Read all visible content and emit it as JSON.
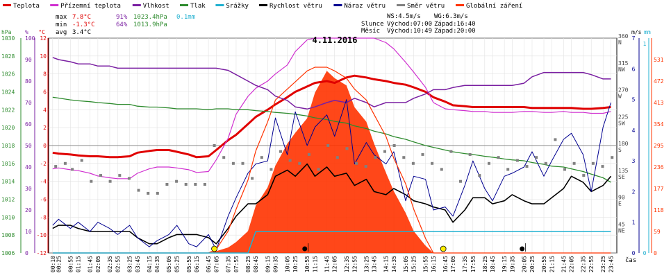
{
  "chart_data": {
    "type": "line",
    "title": "4.11.2016",
    "xlabel": "čas",
    "legend": [
      {
        "label": "Teplota",
        "color": "#e00000"
      },
      {
        "label": "Přízemní teplota",
        "color": "#d030d0"
      },
      {
        "label": "Vlhkost",
        "color": "#7a1fa2"
      },
      {
        "label": "Tlak",
        "color": "#2e8b2e"
      },
      {
        "label": "Srážky",
        "color": "#20b0d0"
      },
      {
        "label": "Rychlost větru",
        "color": "#000000"
      },
      {
        "label": "Náraz větru",
        "color": "#000090"
      },
      {
        "label": "Směr větru",
        "color": "#808080"
      },
      {
        "label": "Globální záření",
        "color": "#ff3300"
      }
    ],
    "stats": {
      "max": {
        "label": "max",
        "temp": "7.8°C",
        "hum": "91%",
        "press": "1023.4hPa",
        "rain": "0.1mm"
      },
      "min": {
        "label": "min",
        "temp": "-1.3°C",
        "hum": "64%",
        "press": "1013.9hPa"
      },
      "avg": {
        "label": "avg",
        "temp": "3.4°C"
      }
    },
    "info": {
      "ws": "WS:4.5m/s",
      "wg": "WG:6.3m/s",
      "sun_label": "Slunce",
      "sunrise": "Východ:07:00",
      "sunset": "Západ:16:40",
      "moon_label": "Měsíc",
      "moonrise": "Východ:10:49",
      "moonset": "Západ:20:00"
    },
    "axes": {
      "hpa": {
        "unit": "hPa",
        "ticks": [
          "1030",
          "1028",
          "1026",
          "1024",
          "1022",
          "1020",
          "1018",
          "1016",
          "1014",
          "1012",
          "1010",
          "1008",
          "1006"
        ],
        "range": [
          1006,
          1030
        ]
      },
      "humidity": {
        "unit": "%",
        "ticks": [
          "100",
          "90",
          "80",
          "70",
          "60",
          "50",
          "40",
          "30",
          "20",
          "10",
          "0"
        ],
        "range": [
          0,
          100
        ]
      },
      "temp": {
        "unit": "°C",
        "ticks": [
          "12",
          "10",
          "8",
          "6",
          "4",
          "2",
          "0",
          "-2",
          "-4",
          "-6",
          "-8",
          "-10",
          "-12"
        ],
        "range": [
          -12,
          12
        ]
      },
      "direction": {
        "ticks": [
          {
            "v": "360",
            "c": "N",
            "deg": 360
          },
          {
            "v": "315",
            "c": "NW",
            "deg": 315
          },
          {
            "v": "270",
            "c": "W",
            "deg": 270
          },
          {
            "v": "225",
            "c": "SW",
            "deg": 225
          },
          {
            "v": "180",
            "c": "S",
            "deg": 180
          },
          {
            "v": "135",
            "c": "SE",
            "deg": 135
          },
          {
            "v": "90",
            "c": "E",
            "deg": 90
          },
          {
            "v": "45",
            "c": "NE",
            "deg": 45
          }
        ],
        "range": [
          0,
          360
        ]
      },
      "wind": {
        "unit": "m/s",
        "ticks": [
          "7",
          "6",
          "5",
          "4",
          "3",
          "2",
          "1",
          "0"
        ],
        "range": [
          0,
          7
        ]
      },
      "rain": {
        "unit": "mm",
        "ticks": [
          "1",
          "0"
        ],
        "range": [
          0,
          1
        ]
      },
      "radiation": {
        "ticks": [
          "531",
          "472",
          "413",
          "354",
          "295",
          "236",
          "177",
          "118",
          "59",
          "0"
        ],
        "range": [
          0,
          590
        ]
      }
    },
    "x": [
      "00:10",
      "00:25",
      "00:55",
      "01:15",
      "01:45",
      "02:05",
      "02:35",
      "02:55",
      "03:25",
      "03:45",
      "04:15",
      "04:35",
      "05:05",
      "05:25",
      "05:55",
      "06:15",
      "06:45",
      "07:05",
      "07:35",
      "07:55",
      "08:25",
      "08:45",
      "09:15",
      "09:35",
      "10:05",
      "10:25",
      "10:55",
      "11:15",
      "11:45",
      "12:05",
      "12:35",
      "12:55",
      "13:25",
      "13:45",
      "14:15",
      "14:35",
      "15:05",
      "15:25",
      "15:55",
      "16:15",
      "16:45",
      "17:05",
      "17:35",
      "17:55",
      "18:25",
      "18:45",
      "19:15",
      "19:35",
      "20:05",
      "20:25",
      "20:55",
      "21:15",
      "21:45",
      "22:05",
      "22:35",
      "22:55",
      "23:25",
      "23:45"
    ],
    "hours": [
      0.17,
      0.42,
      0.92,
      1.25,
      1.75,
      2.08,
      2.58,
      2.92,
      3.42,
      3.75,
      4.25,
      4.58,
      5.08,
      5.42,
      5.92,
      6.25,
      6.75,
      7.08,
      7.58,
      7.92,
      8.42,
      8.75,
      9.25,
      9.58,
      10.08,
      10.42,
      10.92,
      11.25,
      11.75,
      12.08,
      12.58,
      12.92,
      13.42,
      13.75,
      14.25,
      14.58,
      15.08,
      15.42,
      15.92,
      16.25,
      16.75,
      17.08,
      17.58,
      17.92,
      18.42,
      18.75,
      19.25,
      19.58,
      20.08,
      20.42,
      20.92,
      21.25,
      21.75,
      22.08,
      22.58,
      22.92,
      23.42,
      23.75
    ],
    "series": [
      {
        "name": "Teplota",
        "color": "#e00000",
        "axis": "temp",
        "width": 3,
        "values": [
          -0.8,
          -0.9,
          -1.0,
          -1.1,
          -1.2,
          -1.2,
          -1.3,
          -1.3,
          -1.2,
          -0.8,
          -0.6,
          -0.5,
          -0.5,
          -0.7,
          -1.0,
          -1.3,
          -1.2,
          -0.5,
          0.6,
          1.2,
          2.4,
          3.2,
          4.0,
          4.6,
          5.4,
          6.0,
          6.6,
          7.0,
          7.2,
          7.0,
          7.6,
          7.8,
          7.6,
          7.4,
          7.2,
          7.0,
          6.8,
          6.5,
          6.0,
          5.4,
          4.9,
          4.5,
          4.4,
          4.3,
          4.3,
          4.3,
          4.3,
          4.3,
          4.3,
          4.2,
          4.2,
          4.2,
          4.2,
          4.2,
          4.1,
          4.1,
          4.2,
          4.3
        ]
      },
      {
        "name": "Přízemní teplota",
        "color": "#d030d0",
        "axis": "temp",
        "width": 1.2,
        "values": [
          -2.6,
          -2.5,
          -2.7,
          -2.8,
          -3.1,
          -3.4,
          -3.6,
          -3.7,
          -3.7,
          -3.1,
          -2.6,
          -2.4,
          -2.4,
          -2.5,
          -2.7,
          -3.0,
          -2.9,
          -1.6,
          0.8,
          3.5,
          5.5,
          6.4,
          7.2,
          8.0,
          9.0,
          10.5,
          11.8,
          12.0,
          12.0,
          12.0,
          12.0,
          12.0,
          12.0,
          12.0,
          11.5,
          10.8,
          9.3,
          8.2,
          6.5,
          4.8,
          4.1,
          4.0,
          3.9,
          3.8,
          3.8,
          3.7,
          3.7,
          3.7,
          3.8,
          3.8,
          3.7,
          3.7,
          3.8,
          3.7,
          3.7,
          3.6,
          3.6,
          3.8
        ]
      },
      {
        "name": "Vlhkost",
        "color": "#7a1fa2",
        "axis": "humidity",
        "width": 1.5,
        "values": [
          91,
          90,
          89,
          88,
          88,
          87,
          87,
          86,
          86,
          86,
          86,
          86,
          86,
          86,
          86,
          86,
          86,
          86,
          85,
          83,
          80,
          78,
          76,
          73,
          71,
          68,
          67,
          68,
          70,
          71,
          70,
          72,
          70,
          68,
          70,
          70,
          70,
          72,
          74,
          76,
          76,
          77,
          78,
          78,
          78,
          78,
          78,
          78,
          79,
          82,
          84,
          84,
          84,
          84,
          84,
          83,
          81,
          81
        ]
      },
      {
        "name": "Tlak",
        "color": "#2e8b2e",
        "axis": "hpa",
        "width": 1.3,
        "values": [
          1023.4,
          1023.3,
          1023.1,
          1023.0,
          1022.9,
          1022.8,
          1022.7,
          1022.6,
          1022.6,
          1022.4,
          1022.3,
          1022.3,
          1022.2,
          1022.1,
          1022.1,
          1022.1,
          1022.0,
          1022.1,
          1022.1,
          1022.0,
          1022.0,
          1021.9,
          1021.8,
          1021.7,
          1021.6,
          1021.5,
          1021.3,
          1021.1,
          1020.9,
          1020.7,
          1020.5,
          1020.2,
          1019.9,
          1019.6,
          1019.3,
          1019.0,
          1018.7,
          1018.4,
          1018.0,
          1017.8,
          1017.5,
          1017.3,
          1017.1,
          1017.0,
          1016.8,
          1016.7,
          1016.5,
          1016.4,
          1016.3,
          1016.1,
          1015.9,
          1015.7,
          1015.6,
          1015.4,
          1015.1,
          1014.8,
          1014.4,
          1013.9
        ]
      },
      {
        "name": "Rychlost větru",
        "color": "#000000",
        "axis": "wind",
        "width": 1.6,
        "values": [
          0.8,
          0.9,
          0.9,
          0.8,
          0.7,
          0.7,
          0.7,
          0.7,
          0.7,
          0.5,
          0.3,
          0.3,
          0.5,
          0.6,
          0.6,
          0.6,
          0.5,
          0.3,
          0.8,
          1.2,
          1.6,
          1.6,
          1.9,
          2.5,
          2.7,
          2.5,
          2.9,
          2.5,
          2.8,
          2.5,
          2.6,
          2.2,
          2.4,
          2.0,
          1.9,
          2.1,
          1.9,
          1.7,
          1.6,
          1.5,
          1.4,
          1.0,
          1.4,
          1.8,
          1.8,
          1.6,
          1.7,
          1.9,
          1.7,
          1.6,
          1.6,
          1.8,
          2.1,
          2.5,
          2.3,
          2.0,
          2.2,
          2.5
        ]
      },
      {
        "name": "Náraz větru",
        "color": "#000090",
        "axis": "wind",
        "width": 1,
        "values": [
          0.9,
          1.1,
          0.8,
          1.0,
          0.7,
          1.0,
          0.8,
          0.6,
          0.9,
          0.5,
          0.2,
          0.4,
          0.6,
          0.9,
          0.3,
          0.2,
          0.6,
          0.1,
          1.2,
          1.8,
          2.6,
          2.9,
          3.0,
          4.4,
          3.2,
          4.6,
          3.5,
          4.1,
          4.5,
          3.8,
          5.0,
          2.9,
          3.6,
          3.2,
          2.9,
          3.3,
          1.7,
          2.5,
          2.4,
          1.4,
          1.5,
          1.2,
          2.2,
          3.0,
          2.1,
          1.7,
          2.5,
          2.6,
          2.8,
          3.3,
          2.5,
          3.0,
          3.7,
          3.9,
          3.2,
          2.0,
          4.1,
          4.9
        ]
      },
      {
        "name": "Globální záření",
        "color": "#ff3300",
        "axis": "radiation",
        "type": "area",
        "values": [
          0,
          0,
          0,
          0,
          0,
          0,
          0,
          0,
          0,
          0,
          0,
          0,
          0,
          0,
          0,
          0,
          0,
          5,
          15,
          30,
          60,
          130,
          180,
          240,
          300,
          330,
          370,
          440,
          500,
          480,
          460,
          400,
          360,
          300,
          220,
          170,
          110,
          60,
          20,
          0,
          0,
          0,
          0,
          0,
          0,
          0,
          0,
          0,
          0,
          0,
          0,
          0,
          0,
          0,
          0,
          0,
          0,
          0
        ]
      },
      {
        "name": "Globální záření max",
        "color": "#ff3300",
        "axis": "radiation",
        "width": 1.2,
        "values": [
          0,
          0,
          0,
          0,
          0,
          0,
          0,
          0,
          0,
          0,
          0,
          0,
          0,
          0,
          0,
          0,
          0,
          10,
          60,
          120,
          200,
          280,
          360,
          420,
          450,
          470,
          500,
          510,
          510,
          500,
          480,
          450,
          420,
          380,
          320,
          260,
          190,
          120,
          40,
          0,
          0,
          0,
          0,
          0,
          0,
          0,
          0,
          0,
          0,
          0,
          0,
          0,
          0,
          0,
          0,
          0,
          0,
          0
        ]
      },
      {
        "name": "Srážky",
        "color": "#20b0d0",
        "axis": "rain",
        "width": 1.6,
        "values": [
          0,
          0,
          0,
          0,
          0,
          0,
          0,
          0,
          0,
          0,
          0,
          0,
          0,
          0,
          0,
          0,
          0,
          0,
          0,
          0,
          0,
          0.1,
          0.1,
          0.1,
          0.1,
          0.1,
          0.1,
          0.1,
          0.1,
          0.1,
          0.1,
          0.1,
          0.1,
          0.1,
          0.1,
          0.1,
          0.1,
          0.1,
          0.1,
          0.1,
          0.1,
          0.1,
          0.1,
          0.1,
          0.1,
          0.1,
          0.1,
          0.1,
          0.1,
          0.1,
          0.1,
          0.1,
          0.1,
          0.1,
          0.1,
          0.1,
          0.1,
          0.1
        ]
      }
    ],
    "wind_direction_hours": [
      0.3,
      0.7,
      1.0,
      1.4,
      1.8,
      2.2,
      2.6,
      3.0,
      3.4,
      3.8,
      4.2,
      4.6,
      5.0,
      5.4,
      5.8,
      6.2,
      6.6,
      7.0,
      7.4,
      7.8,
      8.2,
      8.6,
      9.0,
      9.4,
      9.8,
      10.2,
      10.6,
      11.0,
      11.4,
      11.8,
      12.2,
      12.6,
      13.0,
      13.4,
      13.8,
      14.2,
      14.6,
      15.0,
      15.4,
      15.8,
      16.2,
      16.6,
      17.0,
      17.4,
      17.8,
      18.2,
      18.6,
      19.0,
      19.4,
      19.8,
      20.2,
      20.6,
      21.0,
      21.4,
      21.8,
      22.2,
      22.6,
      23.0,
      23.4,
      23.8
    ],
    "wind_direction_deg": [
      145,
      150,
      140,
      155,
      120,
      130,
      120,
      130,
      125,
      105,
      100,
      100,
      115,
      120,
      115,
      115,
      115,
      180,
      160,
      150,
      150,
      125,
      160,
      140,
      170,
      155,
      150,
      165,
      140,
      180,
      160,
      175,
      150,
      145,
      160,
      170,
      180,
      160,
      150,
      165,
      150,
      140,
      170,
      120,
      165,
      130,
      150,
      160,
      140,
      155,
      145,
      160,
      150,
      190,
      140,
      150,
      130,
      150,
      145,
      160
    ],
    "markers": [
      {
        "hour": 7.0,
        "kind": "sunrise"
      },
      {
        "hour": 16.67,
        "kind": "sunset"
      },
      {
        "hour": 10.82,
        "kind": "moonrise"
      },
      {
        "hour": 20.0,
        "kind": "moonset"
      }
    ],
    "legend_placement": "top",
    "grid": true
  }
}
